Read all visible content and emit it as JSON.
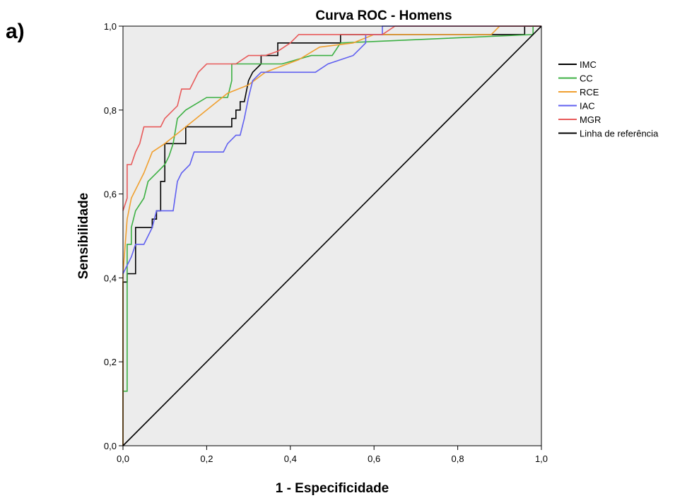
{
  "panel_label": "a)",
  "chart_data": {
    "type": "line",
    "title": "Curva ROC - Homens",
    "xlabel": "1 - Especificidade",
    "ylabel": "Sensibilidade",
    "xlim": [
      0,
      1
    ],
    "ylim": [
      0,
      1
    ],
    "x_ticks": [
      "0,0",
      "0,2",
      "0,4",
      "0,6",
      "0,8",
      "1,0"
    ],
    "y_ticks": [
      "0,0",
      "0,2",
      "0,4",
      "0,6",
      "0,8",
      "1,0"
    ],
    "grid": false,
    "legend_position": "right",
    "series": [
      {
        "name": "IMC",
        "color": "#000000",
        "points": [
          [
            0,
            0
          ],
          [
            0,
            0.39
          ],
          [
            0.01,
            0.39
          ],
          [
            0.01,
            0.41
          ],
          [
            0.03,
            0.41
          ],
          [
            0.03,
            0.52
          ],
          [
            0.07,
            0.52
          ],
          [
            0.07,
            0.54
          ],
          [
            0.08,
            0.54
          ],
          [
            0.08,
            0.56
          ],
          [
            0.09,
            0.56
          ],
          [
            0.09,
            0.59
          ],
          [
            0.09,
            0.63
          ],
          [
            0.1,
            0.63
          ],
          [
            0.1,
            0.72
          ],
          [
            0.13,
            0.72
          ],
          [
            0.15,
            0.72
          ],
          [
            0.15,
            0.76
          ],
          [
            0.26,
            0.76
          ],
          [
            0.26,
            0.78
          ],
          [
            0.27,
            0.78
          ],
          [
            0.27,
            0.8
          ],
          [
            0.28,
            0.8
          ],
          [
            0.28,
            0.82
          ],
          [
            0.29,
            0.82
          ],
          [
            0.3,
            0.87
          ],
          [
            0.31,
            0.89
          ],
          [
            0.33,
            0.91
          ],
          [
            0.33,
            0.93
          ],
          [
            0.37,
            0.93
          ],
          [
            0.37,
            0.96
          ],
          [
            0.52,
            0.96
          ],
          [
            0.52,
            0.98
          ],
          [
            0.96,
            0.98
          ],
          [
            0.96,
            1.0
          ],
          [
            1.0,
            1.0
          ]
        ]
      },
      {
        "name": "CC",
        "color": "#3cb043",
        "points": [
          [
            0,
            0.13
          ],
          [
            0.01,
            0.13
          ],
          [
            0.01,
            0.48
          ],
          [
            0.02,
            0.48
          ],
          [
            0.02,
            0.52
          ],
          [
            0.03,
            0.56
          ],
          [
            0.05,
            0.59
          ],
          [
            0.06,
            0.63
          ],
          [
            0.08,
            0.65
          ],
          [
            0.1,
            0.67
          ],
          [
            0.11,
            0.69
          ],
          [
            0.12,
            0.72
          ],
          [
            0.13,
            0.78
          ],
          [
            0.15,
            0.8
          ],
          [
            0.2,
            0.83
          ],
          [
            0.25,
            0.83
          ],
          [
            0.26,
            0.87
          ],
          [
            0.26,
            0.91
          ],
          [
            0.3,
            0.91
          ],
          [
            0.38,
            0.91
          ],
          [
            0.45,
            0.93
          ],
          [
            0.5,
            0.93
          ],
          [
            0.52,
            0.96
          ],
          [
            0.98,
            0.98
          ],
          [
            0.98,
            1.0
          ],
          [
            1.0,
            1.0
          ]
        ]
      },
      {
        "name": "RCE",
        "color": "#f0a030",
        "points": [
          [
            0,
            0
          ],
          [
            0,
            0.41
          ],
          [
            0.01,
            0.54
          ],
          [
            0.02,
            0.59
          ],
          [
            0.05,
            0.65
          ],
          [
            0.07,
            0.7
          ],
          [
            0.1,
            0.72
          ],
          [
            0.15,
            0.76
          ],
          [
            0.2,
            0.8
          ],
          [
            0.25,
            0.84
          ],
          [
            0.3,
            0.86
          ],
          [
            0.34,
            0.89
          ],
          [
            0.42,
            0.92
          ],
          [
            0.47,
            0.95
          ],
          [
            0.55,
            0.96
          ],
          [
            0.6,
            0.98
          ],
          [
            0.88,
            0.98
          ],
          [
            0.9,
            1.0
          ],
          [
            1.0,
            1.0
          ]
        ]
      },
      {
        "name": "IAC",
        "color": "#6060f0",
        "points": [
          [
            0,
            0.41
          ],
          [
            0.01,
            0.43
          ],
          [
            0.02,
            0.45
          ],
          [
            0.03,
            0.48
          ],
          [
            0.05,
            0.48
          ],
          [
            0.06,
            0.5
          ],
          [
            0.07,
            0.52
          ],
          [
            0.08,
            0.56
          ],
          [
            0.12,
            0.56
          ],
          [
            0.13,
            0.63
          ],
          [
            0.14,
            0.65
          ],
          [
            0.16,
            0.67
          ],
          [
            0.17,
            0.7
          ],
          [
            0.24,
            0.7
          ],
          [
            0.25,
            0.72
          ],
          [
            0.27,
            0.74
          ],
          [
            0.28,
            0.74
          ],
          [
            0.29,
            0.78
          ],
          [
            0.3,
            0.83
          ],
          [
            0.31,
            0.87
          ],
          [
            0.33,
            0.89
          ],
          [
            0.46,
            0.89
          ],
          [
            0.49,
            0.91
          ],
          [
            0.55,
            0.93
          ],
          [
            0.58,
            0.96
          ],
          [
            0.58,
            0.98
          ],
          [
            0.62,
            0.98
          ],
          [
            0.62,
            1.0
          ],
          [
            1.0,
            1.0
          ]
        ]
      },
      {
        "name": "MGR",
        "color": "#e85a5a",
        "points": [
          [
            0,
            0.56
          ],
          [
            0.01,
            0.59
          ],
          [
            0.01,
            0.67
          ],
          [
            0.02,
            0.67
          ],
          [
            0.03,
            0.7
          ],
          [
            0.04,
            0.72
          ],
          [
            0.05,
            0.76
          ],
          [
            0.09,
            0.76
          ],
          [
            0.1,
            0.78
          ],
          [
            0.13,
            0.81
          ],
          [
            0.14,
            0.85
          ],
          [
            0.16,
            0.85
          ],
          [
            0.18,
            0.89
          ],
          [
            0.2,
            0.91
          ],
          [
            0.27,
            0.91
          ],
          [
            0.3,
            0.93
          ],
          [
            0.34,
            0.93
          ],
          [
            0.37,
            0.94
          ],
          [
            0.4,
            0.96
          ],
          [
            0.42,
            0.98
          ],
          [
            0.52,
            0.98
          ],
          [
            0.62,
            0.98
          ],
          [
            0.65,
            1.0
          ],
          [
            1.0,
            1.0
          ]
        ]
      },
      {
        "name": "Linha de referência",
        "color": "#000000",
        "points": [
          [
            0,
            0
          ],
          [
            1,
            1
          ]
        ]
      }
    ]
  }
}
